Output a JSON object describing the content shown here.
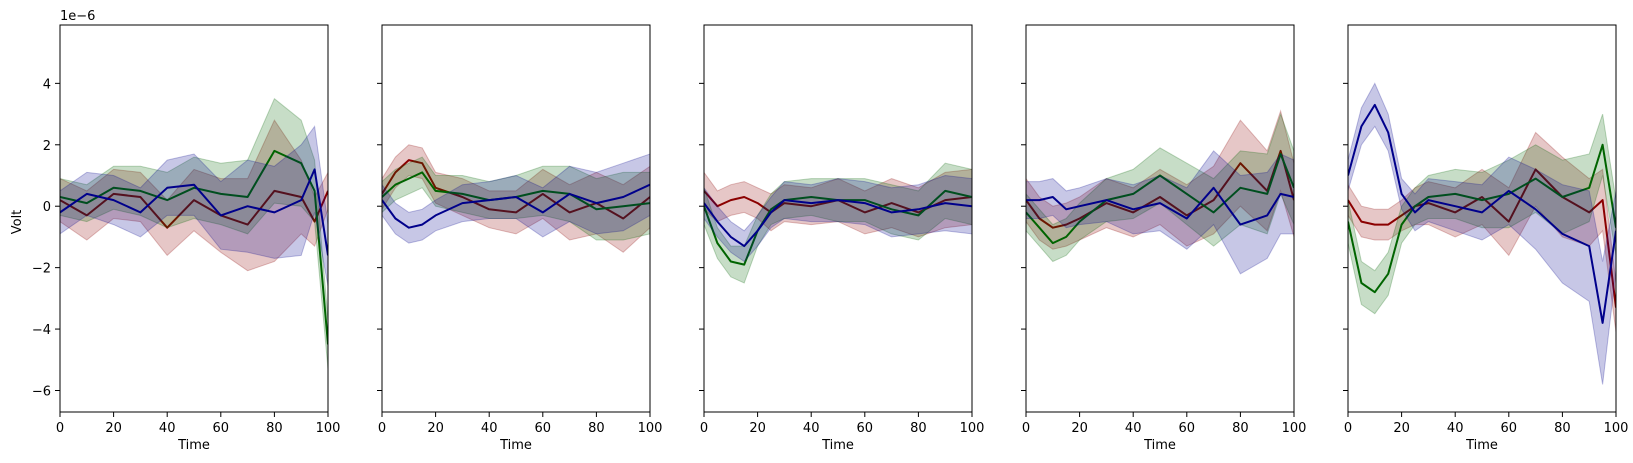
{
  "figure": {
    "ylabel": "Volt",
    "exponent_label": "1e−6"
  },
  "colors": {
    "red": "#8b0000",
    "green": "#006400",
    "blue": "#00008b"
  },
  "chart_data": [
    {
      "type": "line",
      "xlabel": "Time",
      "ylabel": "Volt",
      "xlim": [
        0,
        100
      ],
      "ylim": [
        -6.7,
        5.9
      ],
      "x_ticks": [
        "0",
        "20",
        "40",
        "60",
        "80",
        "100"
      ],
      "y_ticks": [
        "4",
        "2",
        "0",
        "−2",
        "−4",
        "−6"
      ],
      "x_points": [
        0,
        10,
        20,
        30,
        40,
        50,
        60,
        70,
        80,
        90,
        95,
        100
      ],
      "series": [
        {
          "color": "red",
          "values": [
            0.2,
            -0.3,
            0.4,
            0.3,
            -0.7,
            0.2,
            -0.3,
            -0.6,
            0.5,
            0.3,
            -0.5,
            0.5
          ],
          "band": [
            0.7,
            0.8,
            0.8,
            0.8,
            0.9,
            1.0,
            1.2,
            1.5,
            2.3,
            1.2,
            0.8,
            0.6
          ]
        },
        {
          "color": "green",
          "values": [
            0.3,
            0.1,
            0.6,
            0.5,
            0.2,
            0.6,
            0.4,
            0.3,
            1.8,
            1.4,
            0.5,
            -4.5
          ],
          "band": [
            0.6,
            0.6,
            0.7,
            0.8,
            0.9,
            1.0,
            1.0,
            1.2,
            1.7,
            1.4,
            1.0,
            0.8
          ]
        },
        {
          "color": "blue",
          "values": [
            -0.2,
            0.4,
            0.2,
            -0.2,
            0.6,
            0.7,
            -0.3,
            0.0,
            -0.2,
            0.2,
            1.2,
            -1.6
          ],
          "band": [
            0.7,
            0.7,
            0.8,
            0.8,
            0.9,
            1.0,
            1.1,
            1.5,
            1.5,
            1.8,
            1.4,
            1.0
          ]
        }
      ]
    },
    {
      "type": "line",
      "xlabel": "Time",
      "xlim": [
        0,
        100
      ],
      "ylim": [
        -6.7,
        5.9
      ],
      "x_ticks": [
        "0",
        "20",
        "40",
        "60",
        "80",
        "100"
      ],
      "x_points": [
        0,
        5,
        10,
        15,
        20,
        30,
        40,
        50,
        60,
        70,
        80,
        90,
        100
      ],
      "series": [
        {
          "color": "red",
          "values": [
            0.4,
            1.1,
            1.5,
            1.4,
            0.6,
            0.3,
            -0.1,
            -0.2,
            0.4,
            -0.2,
            0.1,
            -0.4,
            0.3
          ],
          "band": [
            0.5,
            0.5,
            0.5,
            0.5,
            0.5,
            0.6,
            0.6,
            0.7,
            0.8,
            0.9,
            1.0,
            1.1,
            1.0
          ]
        },
        {
          "color": "green",
          "values": [
            0.3,
            0.7,
            0.9,
            1.1,
            0.5,
            0.4,
            0.2,
            0.3,
            0.5,
            0.4,
            -0.1,
            0.0,
            0.1
          ],
          "band": [
            0.5,
            0.5,
            0.5,
            0.5,
            0.5,
            0.6,
            0.6,
            0.7,
            0.8,
            0.9,
            1.0,
            1.1,
            1.0
          ]
        },
        {
          "color": "blue",
          "values": [
            0.2,
            -0.4,
            -0.7,
            -0.6,
            -0.3,
            0.1,
            0.2,
            0.3,
            -0.2,
            0.4,
            0.1,
            0.3,
            0.7
          ],
          "band": [
            0.5,
            0.5,
            0.5,
            0.5,
            0.5,
            0.6,
            0.6,
            0.7,
            0.8,
            0.9,
            1.0,
            1.1,
            1.0
          ]
        }
      ]
    },
    {
      "type": "line",
      "xlabel": "Time",
      "xlim": [
        0,
        100
      ],
      "ylim": [
        -6.7,
        5.9
      ],
      "x_ticks": [
        "0",
        "20",
        "40",
        "60",
        "80",
        "100"
      ],
      "x_points": [
        0,
        5,
        10,
        15,
        20,
        25,
        30,
        40,
        50,
        60,
        70,
        80,
        90,
        100
      ],
      "series": [
        {
          "color": "red",
          "values": [
            0.5,
            0.0,
            0.2,
            0.3,
            0.1,
            -0.2,
            0.1,
            0.0,
            0.2,
            -0.2,
            0.1,
            -0.2,
            0.2,
            0.3
          ],
          "band": [
            0.6,
            0.5,
            0.5,
            0.5,
            0.5,
            0.6,
            0.6,
            0.6,
            0.7,
            0.7,
            0.8,
            0.8,
            0.9,
            0.9
          ]
        },
        {
          "color": "green",
          "values": [
            0.0,
            -1.2,
            -1.8,
            -1.9,
            -0.8,
            -0.1,
            0.2,
            0.3,
            0.2,
            0.2,
            -0.1,
            -0.3,
            0.5,
            0.3
          ],
          "band": [
            0.6,
            0.5,
            0.5,
            0.6,
            0.5,
            0.5,
            0.6,
            0.6,
            0.7,
            0.7,
            0.8,
            0.8,
            0.9,
            0.9
          ]
        },
        {
          "color": "blue",
          "values": [
            0.1,
            -0.5,
            -1.0,
            -1.3,
            -0.8,
            -0.2,
            0.2,
            0.1,
            0.2,
            0.1,
            -0.2,
            -0.1,
            0.1,
            0.0
          ],
          "band": [
            0.5,
            0.5,
            0.5,
            0.5,
            0.5,
            0.5,
            0.6,
            0.6,
            0.7,
            0.7,
            0.8,
            0.8,
            0.9,
            0.9
          ]
        }
      ]
    },
    {
      "type": "line",
      "xlabel": "Time",
      "xlim": [
        0,
        100
      ],
      "ylim": [
        -6.7,
        5.9
      ],
      "x_ticks": [
        "0",
        "20",
        "40",
        "60",
        "80",
        "100"
      ],
      "x_points": [
        0,
        5,
        10,
        15,
        20,
        30,
        40,
        50,
        60,
        70,
        80,
        90,
        95,
        100
      ],
      "series": [
        {
          "color": "red",
          "values": [
            0.2,
            -0.4,
            -0.7,
            -0.6,
            -0.4,
            0.1,
            -0.2,
            0.3,
            -0.3,
            0.2,
            1.4,
            0.5,
            1.8,
            0.2
          ],
          "band": [
            0.7,
            0.7,
            0.7,
            0.7,
            0.7,
            0.8,
            0.8,
            0.9,
            1.0,
            1.1,
            1.4,
            1.3,
            1.3,
            1.2
          ]
        },
        {
          "color": "green",
          "values": [
            -0.2,
            -0.7,
            -1.2,
            -1.0,
            -0.5,
            0.2,
            0.4,
            1.0,
            0.4,
            -0.2,
            0.6,
            0.4,
            1.7,
            0.6
          ],
          "band": [
            0.6,
            0.6,
            0.6,
            0.6,
            0.6,
            0.7,
            0.8,
            0.9,
            1.0,
            1.1,
            1.2,
            1.3,
            1.3,
            1.2
          ]
        },
        {
          "color": "blue",
          "values": [
            0.2,
            0.2,
            0.3,
            -0.1,
            0.0,
            0.2,
            -0.1,
            0.1,
            -0.4,
            0.6,
            -0.6,
            -0.3,
            0.4,
            0.3
          ],
          "band": [
            0.6,
            0.6,
            0.6,
            0.6,
            0.6,
            0.7,
            0.8,
            0.9,
            1.0,
            1.2,
            1.6,
            1.4,
            1.3,
            1.2
          ]
        }
      ]
    },
    {
      "type": "line",
      "xlabel": "Time",
      "xlim": [
        0,
        100
      ],
      "ylim": [
        -6.7,
        5.9
      ],
      "x_ticks": [
        "0",
        "20",
        "40",
        "60",
        "80",
        "100"
      ],
      "x_points": [
        0,
        5,
        10,
        15,
        20,
        25,
        30,
        40,
        50,
        60,
        70,
        80,
        90,
        95,
        100
      ],
      "series": [
        {
          "color": "red",
          "values": [
            0.2,
            -0.5,
            -0.6,
            -0.6,
            -0.3,
            0.0,
            0.1,
            -0.2,
            0.3,
            -0.5,
            1.2,
            0.3,
            -0.2,
            0.2,
            -3.3
          ],
          "band": [
            0.5,
            0.5,
            0.5,
            0.5,
            0.5,
            0.6,
            0.7,
            0.8,
            0.9,
            1.1,
            1.2,
            1.3,
            1.1,
            1.0,
            0.8
          ]
        },
        {
          "color": "green",
          "values": [
            -0.5,
            -2.5,
            -2.8,
            -2.2,
            -0.6,
            0.0,
            0.3,
            0.4,
            0.2,
            0.4,
            0.9,
            0.3,
            0.6,
            2.0,
            -0.7
          ],
          "band": [
            0.7,
            0.7,
            0.7,
            0.7,
            0.6,
            0.6,
            0.7,
            0.8,
            0.9,
            1.1,
            1.1,
            1.2,
            1.1,
            1.0,
            0.9
          ]
        },
        {
          "color": "blue",
          "values": [
            1.0,
            2.6,
            3.3,
            2.4,
            0.4,
            -0.2,
            0.2,
            0.0,
            -0.2,
            0.5,
            -0.1,
            -0.9,
            -1.3,
            -3.8,
            -0.8
          ],
          "band": [
            0.5,
            0.6,
            0.7,
            0.6,
            0.5,
            0.6,
            0.7,
            0.8,
            0.9,
            1.1,
            1.3,
            1.6,
            1.8,
            2.0,
            1.3
          ]
        }
      ]
    }
  ]
}
